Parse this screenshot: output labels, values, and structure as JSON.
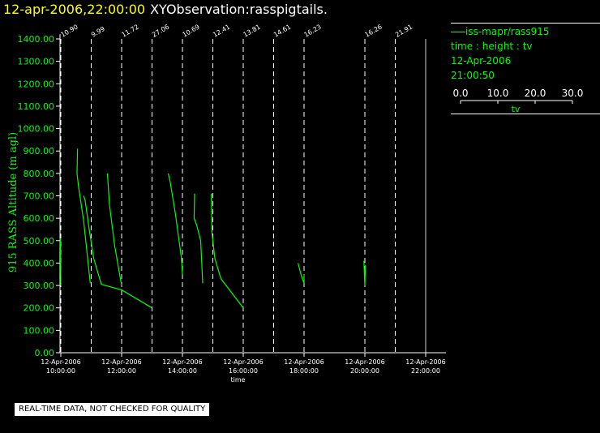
{
  "header": {
    "time": "12-apr-2006,22:00:00",
    "name": "XYObservation:rasspigtails."
  },
  "legend": {
    "series_label": "iss-mapr/rass915",
    "desc": "time : height : tv",
    "date": "12-Apr-2006",
    "clock": "21:00:50",
    "scale_ticks": [
      "0.0",
      "10.0",
      "20.0",
      "30.0"
    ],
    "scale_values": [
      0,
      10,
      20,
      30
    ],
    "scale_label": "tv"
  },
  "disclaimer": "REAL-TIME DATA, NOT CHECKED FOR QUALITY",
  "colors": {
    "background": "#000000",
    "series": "#00ff00",
    "axis": "#ffffff",
    "title_time": "#ffff00"
  },
  "chart_data": {
    "type": "line",
    "title": "XYObservation:rasspigtails.",
    "xlabel": "time",
    "ylabel": "915 RASS Altitude (m agl)",
    "xlim": [
      "2006-04-12 09:00",
      "2006-04-12 22:00"
    ],
    "ylim": [
      0,
      1400
    ],
    "y_ticks": [
      0,
      100,
      200,
      300,
      400,
      500,
      600,
      700,
      800,
      900,
      1000,
      1100,
      1200,
      1300,
      1400
    ],
    "y_tick_labels": [
      "0.00",
      "100.00",
      "200.00",
      "300.00",
      "400.00",
      "500.00",
      "600.00",
      "700.00",
      "800.00",
      "900.00",
      "1000.00",
      "1100.00",
      "1200.00",
      "1300.00",
      "1400.00"
    ],
    "x_ticks": [
      {
        "t": "2006-04-12 10:00",
        "date": "12-Apr-2006",
        "time": "10:00:00"
      },
      {
        "t": "2006-04-12 12:00",
        "date": "12-Apr-2006",
        "time": "12:00:00"
      },
      {
        "t": "2006-04-12 14:00",
        "date": "12-Apr-2006",
        "time": "14:00:00"
      },
      {
        "t": "2006-04-12 16:00",
        "date": "12-Apr-2006",
        "time": "16:00:00"
      },
      {
        "t": "2006-04-12 18:00",
        "date": "12-Apr-2006",
        "time": "18:00:00"
      },
      {
        "t": "2006-04-12 20:00",
        "date": "12-Apr-2006",
        "time": "20:00:00"
      },
      {
        "t": "2006-04-12 22:00",
        "date": "12-Apr-2006",
        "time": "22:00:00"
      }
    ],
    "profiles": [
      {
        "time": "2006-04-12 10:00",
        "label": "10.90"
      },
      {
        "time": "2006-04-12 11:00",
        "label": "9.99"
      },
      {
        "time": "2006-04-12 12:00",
        "label": "11.72"
      },
      {
        "time": "2006-04-12 13:00",
        "label": "27.06"
      },
      {
        "time": "2006-04-12 14:00",
        "label": "10.69"
      },
      {
        "time": "2006-04-12 15:00",
        "label": "12.41"
      },
      {
        "time": "2006-04-12 16:00",
        "label": "13.81"
      },
      {
        "time": "2006-04-12 17:00",
        "label": "14.61"
      },
      {
        "time": "2006-04-12 18:00",
        "label": "16.23"
      },
      {
        "time": "2006-04-12 20:00",
        "label": "16.26"
      },
      {
        "time": "2006-04-12 21:00",
        "label": "21.91"
      }
    ],
    "series": [
      {
        "name": "iss-mapr/rass915",
        "segments": [
          {
            "x": [
              "2006-04-12 09:59",
              "2006-04-12 10:00"
            ],
            "y": [
              510,
              300
            ]
          },
          {
            "x": [
              "2006-04-12 10:33",
              "2006-04-12 10:32",
              "2006-04-12 10:35",
              "2006-04-12 10:45",
              "2006-04-12 10:58"
            ],
            "y": [
              910,
              800,
              740,
              590,
              310
            ]
          },
          {
            "x": [
              "2006-04-12 10:45",
              "2006-04-12 10:48",
              "2006-04-12 10:56",
              "2006-04-12 11:05",
              "2006-04-12 11:20",
              "2006-04-12 12:00",
              "2006-04-12 13:00"
            ],
            "y": [
              700,
              680,
              550,
              420,
              305,
              280,
              200
            ]
          },
          {
            "x": [
              "2006-04-12 11:32",
              "2006-04-12 11:36",
              "2006-04-12 11:46",
              "2006-04-12 12:00"
            ],
            "y": [
              800,
              660,
              480,
              300
            ]
          },
          {
            "x": [
              "2006-04-12 13:32",
              "2006-04-12 13:36",
              "2006-04-12 13:46",
              "2006-04-12 13:58",
              "2006-04-12 14:00"
            ],
            "y": [
              800,
              760,
              620,
              420,
              350
            ]
          },
          {
            "x": [
              "2006-04-12 14:24",
              "2006-04-12 14:23",
              "2006-04-12 14:28",
              "2006-04-12 14:36",
              "2006-04-12 14:40"
            ],
            "y": [
              710,
              600,
              570,
              500,
              310
            ]
          },
          {
            "x": [
              "2006-04-12 14:57",
              "2006-04-12 14:58",
              "2006-04-12 15:04",
              "2006-04-12 15:16",
              "2006-04-12 16:00"
            ],
            "y": [
              710,
              540,
              420,
              330,
              200
            ]
          },
          {
            "x": [
              "2006-04-12 17:48",
              "2006-04-12 17:55",
              "2006-04-12 18:00",
              "2006-04-12 18:00"
            ],
            "y": [
              400,
              340,
              310,
              350
            ]
          },
          {
            "x": [
              "2006-04-12 19:58",
              "2006-04-12 20:00",
              "2006-04-12 20:01"
            ],
            "y": [
              410,
              300,
              390
            ]
          }
        ]
      }
    ]
  }
}
